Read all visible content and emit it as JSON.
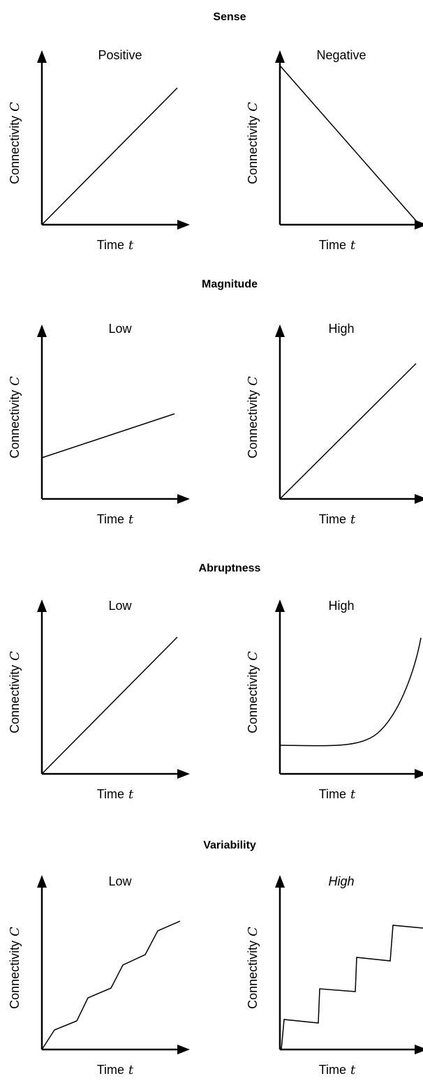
{
  "sections": [
    {
      "title": "Sense",
      "panels": [
        {
          "label": "Positive"
        },
        {
          "label": "Negative"
        }
      ]
    },
    {
      "title": "Magnitude",
      "panels": [
        {
          "label": "Low"
        },
        {
          "label": "High"
        }
      ]
    },
    {
      "title": "Abruptness",
      "panels": [
        {
          "label": "Low"
        },
        {
          "label": "High"
        }
      ]
    },
    {
      "title": "Variability",
      "panels": [
        {
          "label": "Low"
        },
        {
          "label": "High",
          "italic": true
        }
      ]
    }
  ],
  "y_axis": {
    "label": "Connectivity",
    "symbol": "C"
  },
  "x_axis": {
    "label": "Time",
    "symbol": "t"
  }
}
